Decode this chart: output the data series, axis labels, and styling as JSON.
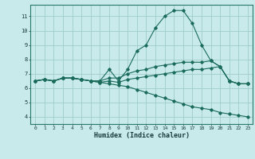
{
  "title": "",
  "xlabel": "Humidex (Indice chaleur)",
  "ylabel": "",
  "background_color": "#c8eaea",
  "grid_color": "#a0cccc",
  "line_color": "#1a6b5a",
  "xlim": [
    -0.5,
    23.5
  ],
  "ylim": [
    3.5,
    11.8
  ],
  "xticks": [
    0,
    1,
    2,
    3,
    4,
    5,
    6,
    7,
    8,
    9,
    10,
    11,
    12,
    13,
    14,
    15,
    16,
    17,
    18,
    19,
    20,
    21,
    22,
    23
  ],
  "yticks": [
    4,
    5,
    6,
    7,
    8,
    9,
    10,
    11
  ],
  "lines": [
    [
      6.5,
      6.6,
      6.5,
      6.7,
      6.7,
      6.6,
      6.5,
      6.5,
      7.3,
      6.5,
      7.3,
      8.6,
      9.0,
      10.2,
      11.0,
      11.4,
      11.4,
      10.5,
      9.0,
      7.9,
      7.5,
      6.5,
      6.3,
      6.3
    ],
    [
      6.5,
      6.6,
      6.5,
      6.7,
      6.7,
      6.6,
      6.5,
      6.5,
      6.7,
      6.7,
      7.0,
      7.2,
      7.3,
      7.5,
      7.6,
      7.7,
      7.8,
      7.8,
      7.8,
      7.9,
      7.5,
      6.5,
      6.3,
      6.3
    ],
    [
      6.5,
      6.6,
      6.5,
      6.7,
      6.7,
      6.6,
      6.5,
      6.4,
      6.5,
      6.4,
      6.6,
      6.7,
      6.8,
      6.9,
      7.0,
      7.1,
      7.2,
      7.3,
      7.3,
      7.4,
      7.5,
      6.5,
      6.3,
      6.3
    ],
    [
      6.5,
      6.6,
      6.5,
      6.7,
      6.7,
      6.6,
      6.5,
      6.4,
      6.3,
      6.2,
      6.1,
      5.9,
      5.7,
      5.5,
      5.3,
      5.1,
      4.9,
      4.7,
      4.6,
      4.5,
      4.3,
      4.2,
      4.1,
      4.0
    ]
  ],
  "marker": "D",
  "markersize": 1.8,
  "linewidth": 0.8
}
